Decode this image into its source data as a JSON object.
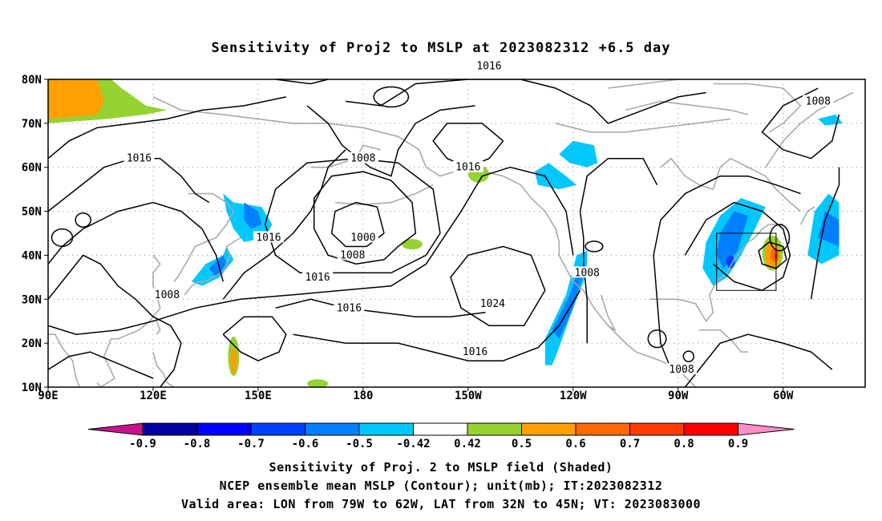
{
  "title": "Sensitivity of Proj2 to MSLP at 2023082312 +6.5 day",
  "map": {
    "lat_labels": [
      "10N",
      "20N",
      "30N",
      "40N",
      "50N",
      "60N",
      "70N",
      "80N"
    ],
    "lon_labels": [
      "90E",
      "120E",
      "150E",
      "180",
      "150W",
      "120W",
      "90W",
      "60W"
    ],
    "contour_labels": [
      {
        "text": "1016",
        "lon": -144,
        "lat": 83
      },
      {
        "text": "1008",
        "lon": -50,
        "lat": 75
      },
      {
        "text": "1016",
        "lon": 116,
        "lat": 62
      },
      {
        "text": "1008",
        "lon": 180,
        "lat": 62
      },
      {
        "text": "1016",
        "lon": -150,
        "lat": 60
      },
      {
        "text": "1016",
        "lon": 153,
        "lat": 44
      },
      {
        "text": "1000",
        "lon": 180,
        "lat": 44
      },
      {
        "text": "1008",
        "lon": 177,
        "lat": 40
      },
      {
        "text": "1016",
        "lon": 167,
        "lat": 35
      },
      {
        "text": "1008",
        "lon": -116,
        "lat": 36
      },
      {
        "text": "1024",
        "lon": -143,
        "lat": 29
      },
      {
        "text": "1008",
        "lon": 124,
        "lat": 31
      },
      {
        "text": "1016",
        "lon": 176,
        "lat": 28
      },
      {
        "text": "1016",
        "lon": -148,
        "lat": 18
      },
      {
        "text": "1008",
        "lon": -89,
        "lat": 14
      }
    ],
    "valid_box": {
      "lon_from": -79,
      "lon_to": -62,
      "lat_from": 32,
      "lat_to": 45
    }
  },
  "colorbar": {
    "tick_labels": [
      "-0.9",
      "-0.8",
      "-0.7",
      "-0.6",
      "-0.5",
      "-0.42",
      "0.42",
      "0.5",
      "0.6",
      "0.7",
      "0.8",
      "0.9"
    ],
    "colors": [
      "#0000a0",
      "#0000ff",
      "#0040ff",
      "#0080ff",
      "#00c8ff",
      "#ffffff",
      "#96d232",
      "#ffa000",
      "#ff6a00",
      "#ff3c00",
      "#ff0000"
    ],
    "end_colors": {
      "low": "#c8148c",
      "high": "#ff8cc8"
    }
  },
  "footer": {
    "line1": "Sensitivity of Proj. 2 to MSLP field (Shaded)",
    "line2": "NCEP ensemble mean MSLP (Contour); unit(mb); IT:2023082312",
    "line3": "Valid area: LON from 79W to 62W, LAT from 32N to 45N; VT: 2023083000"
  }
}
